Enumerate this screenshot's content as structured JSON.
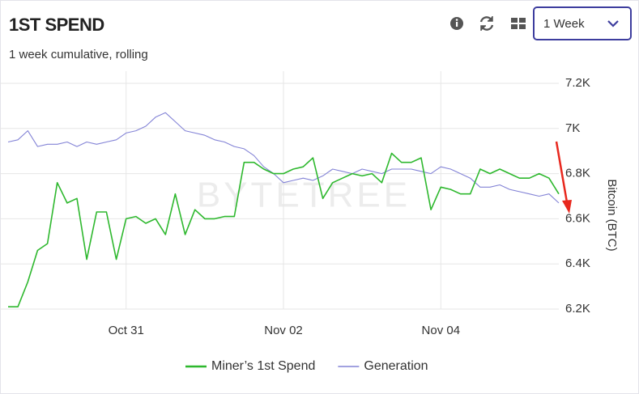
{
  "controls": {
    "range": "1 Week"
  },
  "watermark": "BYTETREE",
  "chart_data": {
    "type": "line",
    "title": "1ST SPEND",
    "subtitle": "1 week cumulative, rolling",
    "y_label": "Bitcoin (BTC)",
    "categories": [
      null,
      null,
      null,
      null,
      null,
      null,
      null,
      null,
      null,
      null,
      null,
      null,
      "Oct 31",
      null,
      null,
      null,
      null,
      null,
      null,
      null,
      null,
      null,
      null,
      null,
      null,
      null,
      null,
      null,
      "Nov 02",
      null,
      null,
      null,
      null,
      null,
      null,
      null,
      null,
      null,
      null,
      null,
      null,
      null,
      null,
      null,
      "Nov 04",
      null,
      null,
      null,
      null,
      null,
      null,
      null,
      null,
      null,
      null,
      null,
      null
    ],
    "series": [
      {
        "name": "Miner’s 1st Spend",
        "color": "#2eb82e",
        "values": [
          6210,
          6210,
          6320,
          6460,
          6490,
          6760,
          6670,
          6690,
          6420,
          6630,
          6630,
          6420,
          6600,
          6610,
          6580,
          6600,
          6530,
          6710,
          6530,
          6640,
          6600,
          6600,
          6610,
          6610,
          6850,
          6850,
          6820,
          6800,
          6800,
          6820,
          6830,
          6870,
          6690,
          6760,
          6780,
          6800,
          6790,
          6800,
          6760,
          6890,
          6850,
          6850,
          6870,
          6640,
          6740,
          6730,
          6710,
          6710,
          6820,
          6800,
          6820,
          6800,
          6780,
          6780,
          6800,
          6780,
          6710
        ]
      },
      {
        "name": "Generation",
        "color": "#8383d6",
        "values": [
          6940,
          6950,
          6990,
          6920,
          6930,
          6930,
          6940,
          6920,
          6940,
          6930,
          6940,
          6950,
          6980,
          6990,
          7010,
          7050,
          7070,
          7030,
          6990,
          6980,
          6970,
          6950,
          6940,
          6920,
          6910,
          6880,
          6830,
          6800,
          6760,
          6770,
          6780,
          6770,
          6790,
          6820,
          6810,
          6800,
          6820,
          6810,
          6800,
          6820,
          6820,
          6820,
          6810,
          6800,
          6830,
          6820,
          6800,
          6780,
          6740,
          6740,
          6750,
          6730,
          6720,
          6710,
          6700,
          6710,
          6670
        ]
      }
    ],
    "ylim": [
      6200,
      7200
    ],
    "yticks": [
      {
        "value": 6200,
        "label": "6.2K"
      },
      {
        "value": 6400,
        "label": "6.4K"
      },
      {
        "value": 6600,
        "label": "6.6K"
      },
      {
        "value": 6800,
        "label": "6.8K"
      },
      {
        "value": 7000,
        "label": "7K"
      },
      {
        "value": 7200,
        "label": "7.2K"
      }
    ],
    "grid": true,
    "legend": "bottom"
  }
}
